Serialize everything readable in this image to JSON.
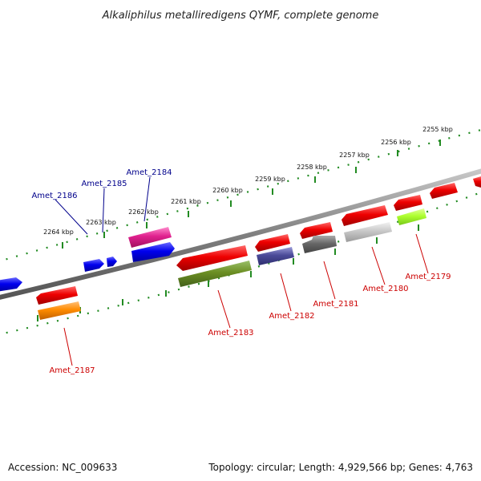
{
  "title": "Alkaliphilus metalliredigens QYMF, complete genome",
  "footer": {
    "accession": "Accession: NC_009633",
    "summary": "Topology: circular; Length: 4,929,566 bp; Genes: 4,763"
  },
  "ticks": [
    "2255 kbp",
    "2256 kbp",
    "2257 kbp",
    "2258 kbp",
    "2259 kbp",
    "2260 kbp",
    "2261 kbp",
    "2262 kbp",
    "2263 kbp",
    "2264 kbp"
  ],
  "gene_labels": [
    {
      "name": "Amet_2184",
      "strand": "forward",
      "color": "#00008b"
    },
    {
      "name": "Amet_2185",
      "strand": "forward",
      "color": "#00008b"
    },
    {
      "name": "Amet_2186",
      "strand": "forward",
      "color": "#00008b"
    },
    {
      "name": "Amet_2179",
      "strand": "reverse",
      "color": "#cc0000"
    },
    {
      "name": "Amet_2180",
      "strand": "reverse",
      "color": "#cc0000"
    },
    {
      "name": "Amet_2181",
      "strand": "reverse",
      "color": "#cc0000"
    },
    {
      "name": "Amet_2182",
      "strand": "reverse",
      "color": "#cc0000"
    },
    {
      "name": "Amet_2183",
      "strand": "reverse",
      "color": "#cc0000"
    },
    {
      "name": "Amet_2187",
      "strand": "reverse",
      "color": "#cc0000"
    }
  ],
  "colors": {
    "backbone": "#808080",
    "forward_gene": "#0000ee",
    "reverse_gene": "#ee0000",
    "ruler": "#228b22"
  }
}
